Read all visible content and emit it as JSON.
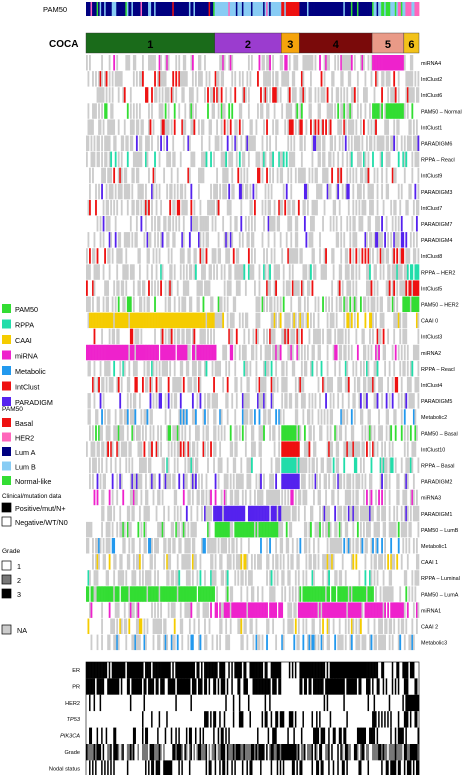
{
  "chart_data": {
    "type": "heatmap",
    "top_track": {
      "label": "PAM50"
    },
    "coca": {
      "label": "COCA",
      "clusters": [
        {
          "name": "1",
          "share": 0.385,
          "color": "#1a6b1a"
        },
        {
          "name": "2",
          "share": 0.2,
          "color": "#9b3ccf"
        },
        {
          "name": "3",
          "share": 0.055,
          "color": "#f5a40c"
        },
        {
          "name": "4",
          "share": 0.22,
          "color": "#7a0a0a"
        },
        {
          "name": "5",
          "share": 0.095,
          "color": "#e99a87"
        },
        {
          "name": "6",
          "share": 0.045,
          "color": "#f2c21a"
        }
      ]
    },
    "platform_colors": {
      "PAM50": "#33dd33",
      "RPPA": "#22ddaa",
      "CAAI": "#f5cc00",
      "miRNA": "#ee22cc",
      "Metabolic": "#2299ee",
      "IntClust": "#ee1111",
      "PARADIGM": "#5522ee",
      "NA": "#cccccc"
    },
    "pam50_colors": {
      "Basal": "#ee1111",
      "HER2": "#ff66bb",
      "Lum A": "#000080",
      "Lum B": "#88ccf4",
      "Normal-like": "#33dd33"
    },
    "legends": {
      "platforms": [
        "PAM50",
        "RPPA",
        "CAAI",
        "miRNA",
        "Metabolic",
        "IntClust",
        "PARADIGM"
      ],
      "pam50_title": "PAM50",
      "pam50": [
        "Basal",
        "HER2",
        "Lum A",
        "Lum B",
        "Normal-like"
      ],
      "clinical_title": "Clinical/mutation data",
      "clinical": [
        "Positive/mut/N+",
        "Negative/WT/N0"
      ],
      "grade_title": "Grade",
      "grade": [
        "1",
        "2",
        "3"
      ],
      "na": "NA"
    },
    "rows": [
      {
        "label": "miRNA4",
        "platform": "miRNA",
        "hot": [
          5
        ]
      },
      {
        "label": "IntClust2",
        "platform": "IntClust",
        "hot": []
      },
      {
        "label": "IntClust6",
        "platform": "IntClust",
        "hot": []
      },
      {
        "label": "PAM50 – Normal",
        "platform": "PAM50",
        "hot": [
          5
        ]
      },
      {
        "label": "IntClust1",
        "platform": "IntClust",
        "hot": []
      },
      {
        "label": "PARADIGM6",
        "platform": "PARADIGM",
        "hot": []
      },
      {
        "label": "RPPA – Reacl",
        "platform": "RPPA",
        "hot": []
      },
      {
        "label": "IntClust9",
        "platform": "IntClust",
        "hot": []
      },
      {
        "label": "PARADIGM3",
        "platform": "PARADIGM",
        "hot": []
      },
      {
        "label": "IntClust7",
        "platform": "IntClust",
        "hot": []
      },
      {
        "label": "PARADIGM7",
        "platform": "PARADIGM",
        "hot": []
      },
      {
        "label": "PARADIGM4",
        "platform": "PARADIGM",
        "hot": []
      },
      {
        "label": "IntClust8",
        "platform": "IntClust",
        "hot": []
      },
      {
        "label": "RPPA – HER2",
        "platform": "RPPA",
        "hot": [
          6
        ]
      },
      {
        "label": "IntClust5",
        "platform": "IntClust",
        "hot": [
          6
        ]
      },
      {
        "label": "PAM50 – HER2",
        "platform": "PAM50",
        "hot": [
          6
        ]
      },
      {
        "label": "CAAI 0",
        "platform": "CAAI",
        "hot": [
          1
        ]
      },
      {
        "label": "IntClust3",
        "platform": "IntClust",
        "hot": []
      },
      {
        "label": "miRNA2",
        "platform": "miRNA",
        "hot": [
          1
        ]
      },
      {
        "label": "RPPA – Reacl",
        "platform": "RPPA",
        "hot": []
      },
      {
        "label": "IntClust4",
        "platform": "IntClust",
        "hot": []
      },
      {
        "label": "PARADIGM5",
        "platform": "PARADIGM",
        "hot": []
      },
      {
        "label": "Metabolic2",
        "platform": "Metabolic",
        "hot": []
      },
      {
        "label": "PAM50 – Basal",
        "platform": "PAM50",
        "hot": [
          3
        ]
      },
      {
        "label": "IntClust10",
        "platform": "IntClust",
        "hot": [
          3
        ]
      },
      {
        "label": "RPPA – Basal",
        "platform": "RPPA",
        "hot": [
          3
        ]
      },
      {
        "label": "PARADIGM2",
        "platform": "PARADIGM",
        "hot": [
          3
        ]
      },
      {
        "label": "miRNA3",
        "platform": "miRNA",
        "hot": []
      },
      {
        "label": "PARADIGM1",
        "platform": "PARADIGM",
        "hot": [
          2
        ]
      },
      {
        "label": "PAM50 – LumB",
        "platform": "PAM50",
        "hot": [
          2
        ]
      },
      {
        "label": "Metabolic1",
        "platform": "Metabolic",
        "hot": []
      },
      {
        "label": "CAAI 1",
        "platform": "CAAI",
        "hot": []
      },
      {
        "label": "RPPA – Luminal",
        "platform": "RPPA",
        "hot": []
      },
      {
        "label": "PAM50 – LumA",
        "platform": "PAM50",
        "hot": [
          1,
          4
        ]
      },
      {
        "label": "miRNA1",
        "platform": "miRNA",
        "hot": [
          2,
          4,
          5
        ]
      },
      {
        "label": "CAAI 2",
        "platform": "CAAI",
        "hot": []
      },
      {
        "label": "Metabolic3",
        "platform": "Metabolic",
        "hot": []
      }
    ],
    "clinical_rows": [
      {
        "label": "ER",
        "italic": false
      },
      {
        "label": "PR",
        "italic": false
      },
      {
        "label": "HER2",
        "italic": false
      },
      {
        "label": "TP53",
        "italic": true
      },
      {
        "label": "PIK3CA",
        "italic": true
      },
      {
        "label": "Grade",
        "italic": false
      },
      {
        "label": "Nodal status",
        "italic": false
      }
    ]
  }
}
